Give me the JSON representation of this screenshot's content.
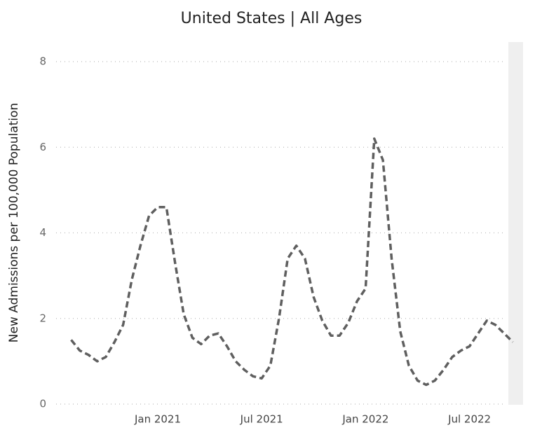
{
  "chart_data": {
    "type": "line",
    "title": "United States | All Ages",
    "y_label": "New Admissions per 100,000 Population",
    "categories": [
      null,
      null,
      null,
      null,
      null,
      null,
      null,
      null,
      null,
      null,
      "Jan 2021",
      null,
      null,
      null,
      null,
      null,
      null,
      null,
      null,
      null,
      null,
      null,
      "Jul 2021",
      null,
      null,
      null,
      null,
      null,
      null,
      null,
      null,
      null,
      null,
      null,
      "Jan 2022",
      null,
      null,
      null,
      null,
      null,
      null,
      null,
      null,
      null,
      null,
      null,
      "Jul 2022",
      null,
      null,
      null,
      null,
      null
    ],
    "series": [
      {
        "name": "New Admissions",
        "color": "#5f5f5f",
        "values": [
          1.5,
          1.25,
          1.15,
          1.0,
          1.1,
          1.45,
          1.85,
          2.9,
          3.7,
          4.4,
          4.6,
          4.6,
          3.3,
          2.1,
          1.55,
          1.4,
          1.6,
          1.65,
          1.35,
          1.0,
          0.8,
          0.65,
          0.6,
          0.9,
          2.0,
          3.4,
          3.7,
          3.4,
          2.5,
          1.95,
          1.6,
          1.6,
          1.9,
          2.4,
          2.7,
          6.2,
          5.7,
          3.4,
          1.7,
          0.9,
          0.55,
          0.45,
          0.55,
          0.8,
          1.1,
          1.25,
          1.35,
          1.65,
          1.95,
          1.85,
          1.65,
          1.45
        ]
      }
    ],
    "ylim": [
      0,
      8
    ],
    "yticks": [
      0,
      2,
      4,
      6,
      8
    ],
    "grid": true
  }
}
